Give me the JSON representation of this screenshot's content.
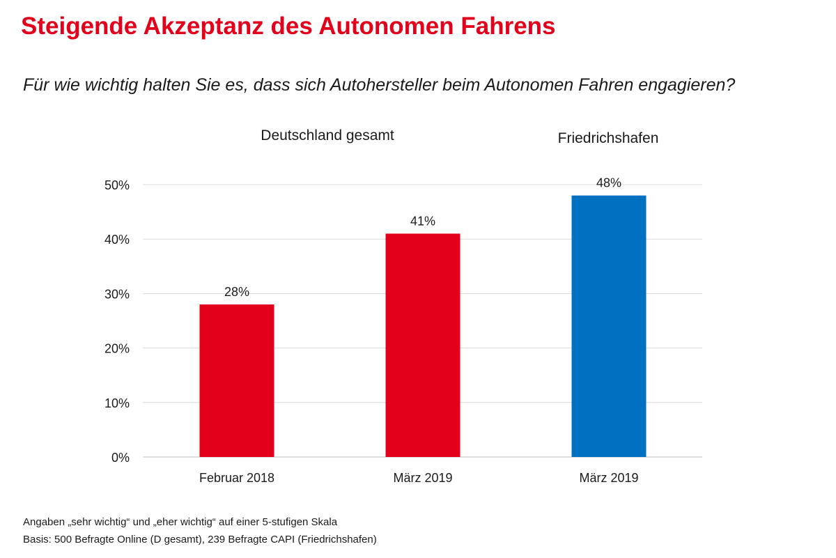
{
  "title": "Steigende Akzeptanz des Autonomen Fahrens",
  "subtitle": "Für wie wichtig halten Sie es, dass sich Autohersteller beim Autonomen Fahren engagieren?",
  "groups": [
    {
      "label": "Deutschland gesamt"
    },
    {
      "label": "Friedrichshafen"
    }
  ],
  "colors": {
    "title": "#e2001a",
    "deutschland": "#e2001a",
    "friedrichshafen": "#0070c0",
    "grid": "#d9d9d9"
  },
  "chart_data": {
    "type": "bar",
    "categories": [
      "Februar 2018",
      "März 2019",
      "März 2019"
    ],
    "values": [
      28,
      41,
      48
    ],
    "value_labels": [
      "28%",
      "41%",
      "48%"
    ],
    "bar_colors": [
      "#e2001a",
      "#e2001a",
      "#0070c0"
    ],
    "bar_groups": [
      "Deutschland gesamt",
      "Deutschland gesamt",
      "Friedrichshafen"
    ],
    "ylim": [
      0,
      50
    ],
    "yticks": [
      0,
      10,
      20,
      30,
      40,
      50
    ],
    "ytick_labels": [
      "0%",
      "10%",
      "20%",
      "30%",
      "40%",
      "50%"
    ],
    "grid": true,
    "xlabel": "",
    "ylabel": ""
  },
  "footnotes": [
    "Angaben „sehr wichtig“ und „eher wichtig“ auf einer 5-stufigen Skala",
    "Basis: 500 Befragte Online (D gesamt), 239 Befragte CAPI (Friedrichshafen)"
  ]
}
